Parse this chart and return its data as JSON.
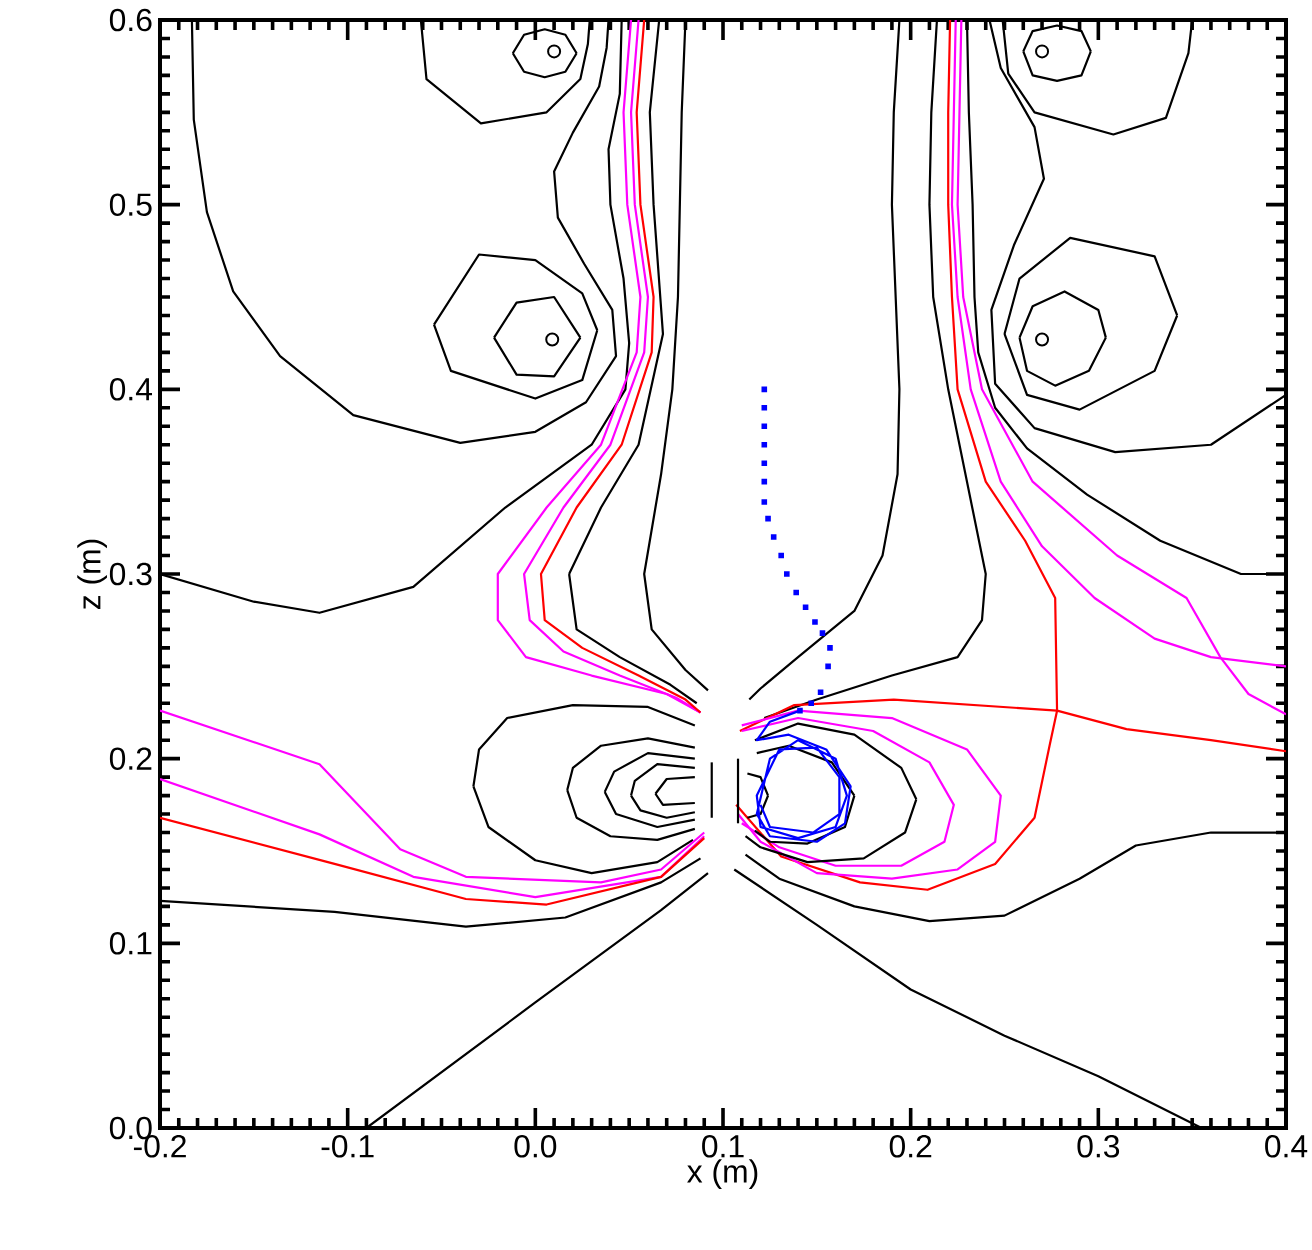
{
  "chart_data": {
    "type": "line",
    "xlabel": "x (m)",
    "ylabel": "z (m)",
    "xlim": [
      -0.2,
      0.4
    ],
    "ylim": [
      0,
      0.6
    ],
    "xticks": [
      -0.2,
      -0.1,
      {
        "value": 0,
        "label": "0.0"
      },
      0.1,
      0.2,
      0.3,
      0.4
    ],
    "yticks": [
      {
        "value": 0,
        "label": "0.0"
      },
      0.1,
      0.2,
      0.3,
      0.4,
      0.5,
      0.6
    ],
    "grid": false,
    "marker": "none",
    "line_style": "solid",
    "series": [
      {
        "color": "#000000",
        "x": [
          -0.183,
          -0.182,
          -0.175,
          -0.161,
          -0.136,
          -0.097,
          -0.04,
          0.0,
          0.027,
          0.043,
          0.041,
          0.026,
          0.012,
          0.01,
          0.02,
          0.034,
          0.038,
          0.039
        ],
        "values": [
          0.6,
          0.546,
          0.496,
          0.453,
          0.418,
          0.386,
          0.371,
          0.377,
          0.393,
          0.418,
          0.443,
          0.468,
          0.493,
          0.518,
          0.539,
          0.564,
          0.585,
          0.6
        ]
      },
      {
        "color": "#000000",
        "x": [
          -0.061,
          -0.058,
          -0.029,
          0.006,
          0.024,
          0.028,
          0.029
        ],
        "values": [
          0.6,
          0.568,
          0.544,
          0.55,
          0.568,
          0.587,
          0.6
        ]
      },
      {
        "color": "#000000",
        "x": [
          -0.012,
          -0.006,
          0.005,
          0.016,
          0.022
        ],
        "values": [
          0.582,
          0.592,
          0.595,
          0.592,
          0.582
        ]
      },
      {
        "color": "#000000",
        "x": [
          -0.012,
          -0.006,
          0.005,
          0.016,
          0.022
        ],
        "values": [
          0.582,
          0.572,
          0.569,
          0.572,
          0.582
        ]
      },
      {
        "type": "scatter",
        "marker": "circle",
        "color": "#000000",
        "x": [
          0.01,
          0.27,
          0.009,
          0.27
        ],
        "values": [
          0.583,
          0.583,
          0.427,
          0.427
        ]
      },
      {
        "color": "#000000",
        "x": [
          -0.054,
          -0.03,
          0.0,
          0.025,
          0.033
        ],
        "values": [
          0.435,
          0.473,
          0.47,
          0.452,
          0.432
        ]
      },
      {
        "color": "#000000",
        "x": [
          -0.054,
          -0.045,
          0.0,
          0.025,
          0.033
        ],
        "values": [
          0.435,
          0.41,
          0.395,
          0.405,
          0.432
        ]
      },
      {
        "color": "#000000",
        "x": [
          -0.022,
          -0.01,
          0.01,
          0.024
        ],
        "values": [
          0.428,
          0.447,
          0.45,
          0.428
        ]
      },
      {
        "color": "#000000",
        "x": [
          -0.022,
          -0.01,
          0.01,
          0.024
        ],
        "values": [
          0.428,
          0.408,
          0.407,
          0.428
        ]
      },
      {
        "color": "#000000",
        "x": [
          0.249,
          0.252,
          0.266,
          0.308,
          0.336,
          0.348,
          0.35
        ],
        "values": [
          0.6,
          0.571,
          0.55,
          0.538,
          0.547,
          0.582,
          0.6
        ]
      },
      {
        "color": "#000000",
        "x": [
          0.26,
          0.265,
          0.278,
          0.291,
          0.296
        ],
        "values": [
          0.583,
          0.594,
          0.597,
          0.594,
          0.583
        ]
      },
      {
        "color": "#000000",
        "x": [
          0.26,
          0.265,
          0.278,
          0.291,
          0.296
        ],
        "values": [
          0.583,
          0.57,
          0.567,
          0.57,
          0.583
        ]
      },
      {
        "color": "#000000",
        "x": [
          0.25,
          0.258,
          0.285,
          0.33,
          0.342
        ],
        "values": [
          0.43,
          0.46,
          0.482,
          0.472,
          0.44
        ]
      },
      {
        "color": "#000000",
        "x": [
          0.25,
          0.262,
          0.29,
          0.33,
          0.342
        ],
        "values": [
          0.43,
          0.397,
          0.389,
          0.41,
          0.44
        ]
      },
      {
        "color": "#000000",
        "x": [
          0.258,
          0.265,
          0.282,
          0.3,
          0.304
        ],
        "values": [
          0.428,
          0.445,
          0.453,
          0.443,
          0.428
        ]
      },
      {
        "color": "#000000",
        "x": [
          0.258,
          0.262,
          0.277,
          0.295,
          0.304
        ],
        "values": [
          0.428,
          0.41,
          0.402,
          0.41,
          0.428
        ]
      },
      {
        "color": "#000000",
        "x": [
          0.4,
          0.36,
          0.309,
          0.266,
          0.245,
          0.243,
          0.255,
          0.271,
          0.266,
          0.248,
          0.242
        ],
        "values": [
          0.397,
          0.37,
          0.366,
          0.379,
          0.403,
          0.443,
          0.478,
          0.514,
          0.542,
          0.574,
          0.6
        ]
      },
      {
        "color": "#000000",
        "x": [
          0.4,
          0.376,
          0.333,
          0.294,
          0.262,
          0.245,
          0.236,
          0.234,
          0.233,
          0.231,
          0.23
        ],
        "values": [
          0.3,
          0.3,
          0.318,
          0.343,
          0.368,
          0.39,
          0.42,
          0.45,
          0.5,
          0.55,
          0.6
        ]
      },
      {
        "color": "#000000",
        "x": [
          -0.2,
          -0.15,
          -0.115,
          -0.065,
          -0.016,
          0.03,
          0.048,
          0.05,
          0.047,
          0.04,
          0.039,
          0.045,
          0.046
        ],
        "values": [
          0.3,
          0.285,
          0.279,
          0.293,
          0.336,
          0.37,
          0.4,
          0.425,
          0.46,
          0.5,
          0.53,
          0.56,
          0.6
        ]
      },
      {
        "color": "#ff00ff",
        "x": [
          0.051,
          0.047,
          0.049,
          0.056,
          0.054,
          0.035,
          0.006,
          -0.02,
          -0.02,
          -0.005,
          0.03,
          0.07,
          0.088
        ],
        "values": [
          0.6,
          0.55,
          0.5,
          0.45,
          0.42,
          0.37,
          0.336,
          0.3,
          0.275,
          0.255,
          0.245,
          0.235,
          0.225
        ]
      },
      {
        "color": "#ff00ff",
        "x": [
          0.055,
          0.051,
          0.053,
          0.06,
          0.058,
          0.04,
          0.015,
          -0.006,
          -0.003,
          0.015,
          0.045,
          0.075,
          0.088
        ],
        "values": [
          0.6,
          0.55,
          0.5,
          0.45,
          0.42,
          0.37,
          0.336,
          0.3,
          0.275,
          0.258,
          0.245,
          0.233,
          0.225
        ]
      },
      {
        "color": "#ff0000",
        "x": [
          0.058,
          0.054,
          0.056,
          0.063,
          0.062,
          0.046,
          0.022,
          0.003,
          0.005,
          0.025,
          0.055,
          0.08,
          0.088
        ],
        "values": [
          0.6,
          0.55,
          0.5,
          0.45,
          0.42,
          0.37,
          0.336,
          0.3,
          0.275,
          0.26,
          0.245,
          0.232,
          0.225
        ]
      },
      {
        "color": "#000000",
        "x": [
          0.066,
          0.061,
          0.063,
          0.068,
          0.055,
          0.035,
          0.018
        ],
        "values": [
          0.6,
          0.55,
          0.5,
          0.43,
          0.37,
          0.336,
          0.3
        ]
      },
      {
        "color": "#000000",
        "x": [
          0.018,
          0.022,
          0.045,
          0.072,
          0.086
        ],
        "values": [
          0.3,
          0.27,
          0.255,
          0.24,
          0.23
        ]
      },
      {
        "color": "#000000",
        "x": [
          0.08,
          0.078,
          0.077,
          0.076,
          0.073,
          0.067,
          0.058,
          0.062,
          0.08,
          0.092
        ],
        "values": [
          0.6,
          0.55,
          0.5,
          0.45,
          0.4,
          0.354,
          0.3,
          0.27,
          0.248,
          0.237
        ]
      },
      {
        "color": "#000000",
        "x": [
          0.194,
          0.191,
          0.19,
          0.192,
          0.194,
          0.193,
          0.185,
          0.17,
          0.14,
          0.12,
          0.114
        ],
        "values": [
          0.6,
          0.55,
          0.5,
          0.45,
          0.4,
          0.354,
          0.31,
          0.28,
          0.255,
          0.238,
          0.232
        ]
      },
      {
        "color": "#000000",
        "x": [
          0.214,
          0.211,
          0.21,
          0.212,
          0.22,
          0.23,
          0.24,
          0.238,
          0.225,
          0.19,
          0.15,
          0.122
        ],
        "values": [
          0.6,
          0.55,
          0.5,
          0.45,
          0.4,
          0.35,
          0.3,
          0.275,
          0.255,
          0.245,
          0.232,
          0.222
        ]
      },
      {
        "color": "#ff0000",
        "x": [
          0.221,
          0.22,
          0.22,
          0.222,
          0.225,
          0.24,
          0.261,
          0.277,
          0.278,
          0.315,
          0.36,
          0.4
        ],
        "values": [
          0.6,
          0.55,
          0.5,
          0.45,
          0.4,
          0.35,
          0.318,
          0.287,
          0.226,
          0.216,
          0.21,
          0.204
        ]
      },
      {
        "color": "#ff0000",
        "x": [
          0.109,
          0.138,
          0.191,
          0.278,
          0.274,
          0.266,
          0.245,
          0.209,
          0.173,
          0.131,
          0.107
        ],
        "values": [
          0.215,
          0.229,
          0.232,
          0.226,
          0.207,
          0.168,
          0.143,
          0.129,
          0.133,
          0.147,
          0.175
        ]
      },
      {
        "color": "#ff00ff",
        "x": [
          0.224,
          0.223,
          0.222,
          0.225,
          0.232,
          0.248,
          0.27,
          0.298,
          0.33,
          0.36,
          0.4
        ],
        "values": [
          0.6,
          0.55,
          0.5,
          0.45,
          0.4,
          0.35,
          0.315,
          0.287,
          0.265,
          0.255,
          0.25
        ]
      },
      {
        "color": "#ff00ff",
        "x": [
          0.227,
          0.226,
          0.225,
          0.228,
          0.238,
          0.265,
          0.31,
          0.347,
          0.365,
          0.38,
          0.4
        ],
        "values": [
          0.6,
          0.55,
          0.5,
          0.45,
          0.4,
          0.35,
          0.31,
          0.287,
          0.255,
          0.235,
          0.224
        ]
      },
      {
        "color": "#ff00ff",
        "x": [
          0.11,
          0.14,
          0.18,
          0.21,
          0.223,
          0.218,
          0.195,
          0.16,
          0.13,
          0.11
        ],
        "values": [
          0.215,
          0.222,
          0.215,
          0.198,
          0.175,
          0.155,
          0.142,
          0.142,
          0.152,
          0.165
        ]
      },
      {
        "color": "#ff00ff",
        "x": [
          0.11,
          0.14,
          0.19,
          0.23,
          0.248,
          0.245,
          0.225,
          0.19,
          0.15,
          0.12,
          0.108
        ],
        "values": [
          0.218,
          0.226,
          0.222,
          0.205,
          0.18,
          0.155,
          0.14,
          0.135,
          0.138,
          0.155,
          0.17
        ]
      },
      {
        "color": "#000000",
        "x": [
          0.117,
          0.14,
          0.17,
          0.195,
          0.203
        ],
        "values": [
          0.21,
          0.219,
          0.213,
          0.195,
          0.178
        ]
      },
      {
        "color": "#000000",
        "x": [
          0.203,
          0.197,
          0.175,
          0.145,
          0.12,
          0.112
        ],
        "values": [
          0.178,
          0.16,
          0.146,
          0.144,
          0.152,
          0.158
        ]
      },
      {
        "color": "#000000",
        "x": [
          0.118,
          0.135,
          0.158,
          0.17
        ],
        "values": [
          0.203,
          0.207,
          0.198,
          0.18
        ]
      },
      {
        "color": "#000000",
        "x": [
          0.17,
          0.165,
          0.145,
          0.125,
          0.117
        ],
        "values": [
          0.18,
          0.163,
          0.154,
          0.155,
          0.161
        ]
      },
      {
        "color": "#000000",
        "x": [
          0.113,
          0.12,
          0.124
        ],
        "values": [
          0.192,
          0.19,
          0.18
        ]
      },
      {
        "color": "#000000",
        "x": [
          0.124,
          0.12,
          0.113
        ],
        "values": [
          0.18,
          0.17,
          0.168
        ]
      },
      {
        "color": "#000000",
        "x": [
          0.112,
          0.13,
          0.17,
          0.21,
          0.25,
          0.29,
          0.32,
          0.36,
          0.4
        ],
        "values": [
          0.148,
          0.135,
          0.12,
          0.112,
          0.115,
          0.135,
          0.153,
          0.16,
          0.16
        ]
      },
      {
        "color": "#000000",
        "x": [
          0.106,
          0.15,
          0.2,
          0.25,
          0.3,
          0.355
        ],
        "values": [
          0.14,
          0.11,
          0.075,
          0.05,
          0.028,
          0.0
        ]
      },
      {
        "color": "#000000",
        "x": [
          0.085,
          0.06,
          0.02,
          -0.015,
          -0.03,
          -0.033
        ],
        "values": [
          0.218,
          0.228,
          0.229,
          0.222,
          0.205,
          0.185
        ]
      },
      {
        "color": "#000000",
        "x": [
          -0.033,
          -0.025,
          0.0,
          0.03,
          0.065,
          0.084
        ],
        "values": [
          0.185,
          0.163,
          0.145,
          0.138,
          0.144,
          0.156
        ]
      },
      {
        "color": "#000000",
        "x": [
          0.085,
          0.06,
          0.035,
          0.02,
          0.017
        ],
        "values": [
          0.206,
          0.211,
          0.207,
          0.195,
          0.183
        ]
      },
      {
        "color": "#000000",
        "x": [
          0.017,
          0.022,
          0.04,
          0.065,
          0.085
        ],
        "values": [
          0.183,
          0.168,
          0.158,
          0.156,
          0.162
        ]
      },
      {
        "color": "#000000",
        "x": [
          0.085,
          0.06,
          0.042,
          0.037
        ],
        "values": [
          0.2,
          0.203,
          0.193,
          0.182
        ]
      },
      {
        "color": "#000000",
        "x": [
          0.037,
          0.043,
          0.065,
          0.085
        ],
        "values": [
          0.182,
          0.17,
          0.163,
          0.167
        ]
      },
      {
        "color": "#000000",
        "x": [
          0.085,
          0.065,
          0.053,
          0.051
        ],
        "values": [
          0.195,
          0.197,
          0.188,
          0.18
        ]
      },
      {
        "color": "#000000",
        "x": [
          0.051,
          0.056,
          0.07,
          0.085
        ],
        "values": [
          0.18,
          0.172,
          0.168,
          0.171
        ]
      },
      {
        "color": "#000000",
        "x": [
          0.085,
          0.07,
          0.064
        ],
        "values": [
          0.19,
          0.189,
          0.181
        ]
      },
      {
        "color": "#000000",
        "x": [
          0.064,
          0.068,
          0.085
        ],
        "values": [
          0.181,
          0.175,
          0.176
        ]
      },
      {
        "color": "#000000",
        "x": [
          0.094,
          0.094
        ],
        "values": [
          0.168,
          0.198
        ]
      },
      {
        "color": "#000000",
        "x": [
          0.108,
          0.108
        ],
        "values": [
          0.165,
          0.2
        ]
      },
      {
        "color": "#ff00ff",
        "x": [
          -0.2,
          -0.115,
          -0.072,
          -0.037,
          0.035,
          0.067,
          0.09
        ],
        "values": [
          0.226,
          0.197,
          0.151,
          0.136,
          0.133,
          0.14,
          0.16
        ]
      },
      {
        "color": "#ff00ff",
        "x": [
          -0.2,
          -0.115,
          -0.065,
          0.0,
          0.067,
          0.09
        ],
        "values": [
          0.189,
          0.159,
          0.136,
          0.125,
          0.136,
          0.158
        ]
      },
      {
        "color": "#ff0000",
        "x": [
          -0.2,
          -0.107,
          -0.037,
          0.006,
          0.067,
          0.09
        ],
        "values": [
          0.168,
          0.143,
          0.124,
          0.121,
          0.136,
          0.157
        ]
      },
      {
        "color": "#000000",
        "x": [
          -0.2,
          -0.107,
          -0.037,
          0.016,
          0.067,
          0.088
        ],
        "values": [
          0.123,
          0.117,
          0.109,
          0.114,
          0.133,
          0.146
        ]
      },
      {
        "color": "#000000",
        "x": [
          0.092,
          0.067,
          0.0,
          -0.09
        ],
        "values": [
          0.138,
          0.118,
          0.068,
          0.0
        ]
      },
      {
        "type": "scatter",
        "marker": "square",
        "color": "#0000ff",
        "x": [
          0.122,
          0.122,
          0.122,
          0.122,
          0.122,
          0.122,
          0.122,
          0.124,
          0.127,
          0.131,
          0.134,
          0.139,
          0.144,
          0.149,
          0.153,
          0.157,
          0.156,
          0.152,
          0.147,
          0.141
        ],
        "values": [
          0.4,
          0.39,
          0.38,
          0.37,
          0.36,
          0.35,
          0.339,
          0.33,
          0.32,
          0.31,
          0.3,
          0.29,
          0.282,
          0.274,
          0.268,
          0.26,
          0.25,
          0.236,
          0.23,
          0.226
        ]
      },
      {
        "color": "#0000ff",
        "x": [
          0.141,
          0.125,
          0.118,
          0.135,
          0.155,
          0.168,
          0.165,
          0.15,
          0.125,
          0.118,
          0.125,
          0.14,
          0.16,
          0.166,
          0.16,
          0.14,
          0.12,
          0.118,
          0.13,
          0.15,
          0.162,
          0.162,
          0.148,
          0.125,
          0.12
        ],
        "values": [
          0.226,
          0.22,
          0.21,
          0.213,
          0.205,
          0.185,
          0.165,
          0.155,
          0.158,
          0.17,
          0.2,
          0.21,
          0.2,
          0.18,
          0.163,
          0.157,
          0.163,
          0.18,
          0.205,
          0.206,
          0.19,
          0.17,
          0.16,
          0.163,
          0.175
        ]
      }
    ]
  }
}
